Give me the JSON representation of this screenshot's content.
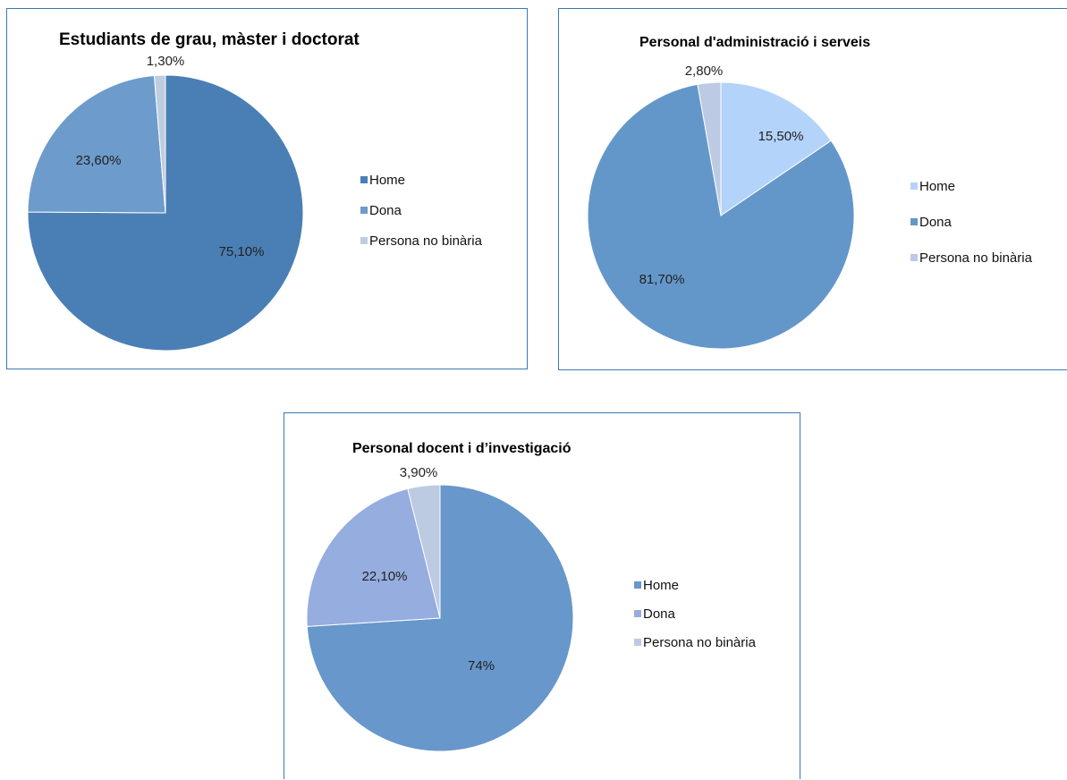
{
  "chart_data": [
    {
      "type": "pie",
      "title": "Estudiants de grau, màster i doctorat",
      "categories": [
        "Home",
        "Dona",
        "Persona no binària"
      ],
      "values": [
        75.1,
        23.6,
        1.3
      ],
      "data_labels": [
        "75,10%",
        "23,60%",
        "1,30%"
      ],
      "colors": [
        "#4a7fb5",
        "#6d9bcb",
        "#c0cde0"
      ],
      "legend_position": "right"
    },
    {
      "type": "pie",
      "title": "Personal d'administració i serveis",
      "categories": [
        "Home",
        "Dona",
        "Persona no binària"
      ],
      "values": [
        15.5,
        81.7,
        2.8
      ],
      "data_labels": [
        "15,50%",
        "81,70%",
        "2,80%"
      ],
      "colors": [
        "#b4d3fa",
        "#6497c9",
        "#bccbe3"
      ],
      "legend_position": "right"
    },
    {
      "type": "pie",
      "title": "Personal docent i d’investigació",
      "categories": [
        "Home",
        "Dona",
        "Persona no binària"
      ],
      "values": [
        74,
        22.1,
        3.9
      ],
      "data_labels": [
        "74%",
        "22,10%",
        "3,90%"
      ],
      "colors": [
        "#6797cb",
        "#95addf",
        "#bccbe2"
      ],
      "legend_position": "right"
    }
  ]
}
